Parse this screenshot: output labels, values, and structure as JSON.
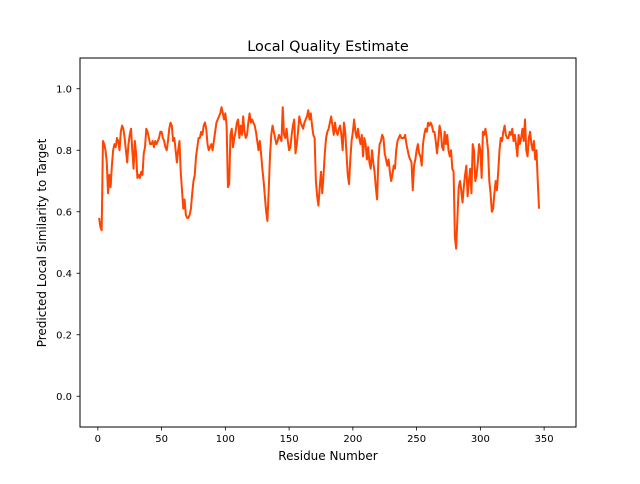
{
  "chart_data": {
    "type": "line",
    "title": "Local Quality Estimate",
    "xlabel": "Residue Number",
    "ylabel": "Predicted Local Similarity to Target",
    "xlim": [
      -14,
      375
    ],
    "ylim": [
      -0.1,
      1.1
    ],
    "xticks": [
      0,
      50,
      100,
      150,
      200,
      250,
      300,
      350
    ],
    "yticks": [
      0.0,
      0.2,
      0.4,
      0.6,
      0.8,
      1.0
    ],
    "ytick_labels": [
      "0.0",
      "0.2",
      "0.4",
      "0.6",
      "0.8",
      "1.0"
    ],
    "grid": false,
    "legend": "none",
    "line_color": "#ff4500",
    "series": [
      {
        "x_start": 1,
        "x_step": 1,
        "values": [
          0.58,
          0.55,
          0.54,
          0.83,
          0.82,
          0.8,
          0.76,
          0.66,
          0.72,
          0.68,
          0.75,
          0.8,
          0.82,
          0.81,
          0.84,
          0.83,
          0.8,
          0.86,
          0.88,
          0.87,
          0.84,
          0.8,
          0.76,
          0.82,
          0.85,
          0.87,
          0.8,
          0.74,
          0.83,
          0.79,
          0.71,
          0.72,
          0.71,
          0.73,
          0.72,
          0.79,
          0.81,
          0.87,
          0.86,
          0.84,
          0.82,
          0.82,
          0.83,
          0.81,
          0.83,
          0.82,
          0.83,
          0.84,
          0.86,
          0.86,
          0.84,
          0.83,
          0.81,
          0.8,
          0.83,
          0.87,
          0.89,
          0.88,
          0.83,
          0.84,
          0.8,
          0.76,
          0.8,
          0.83,
          0.73,
          0.67,
          0.61,
          0.64,
          0.59,
          0.58,
          0.58,
          0.59,
          0.61,
          0.66,
          0.7,
          0.72,
          0.78,
          0.81,
          0.84,
          0.84,
          0.86,
          0.85,
          0.88,
          0.89,
          0.87,
          0.82,
          0.8,
          0.81,
          0.82,
          0.8,
          0.83,
          0.86,
          0.89,
          0.9,
          0.91,
          0.92,
          0.94,
          0.92,
          0.9,
          0.92,
          0.88,
          0.68,
          0.69,
          0.85,
          0.87,
          0.81,
          0.84,
          0.86,
          0.89,
          0.9,
          0.84,
          0.88,
          0.85,
          0.91,
          0.86,
          0.84,
          0.85,
          0.89,
          0.92,
          0.89,
          0.9,
          0.89,
          0.88,
          0.86,
          0.83,
          0.8,
          0.83,
          0.79,
          0.74,
          0.7,
          0.65,
          0.6,
          0.57,
          0.67,
          0.78,
          0.85,
          0.88,
          0.86,
          0.84,
          0.82,
          0.83,
          0.85,
          0.84,
          0.83,
          0.94,
          0.85,
          0.84,
          0.87,
          0.83,
          0.8,
          0.81,
          0.85,
          0.88,
          0.9,
          0.79,
          0.82,
          0.86,
          0.91,
          0.89,
          0.88,
          0.87,
          0.89,
          0.9,
          0.91,
          0.93,
          0.9,
          0.92,
          0.88,
          0.85,
          0.84,
          0.7,
          0.65,
          0.62,
          0.68,
          0.73,
          0.66,
          0.72,
          0.79,
          0.84,
          0.86,
          0.87,
          0.89,
          0.91,
          0.88,
          0.85,
          0.89,
          0.86,
          0.85,
          0.87,
          0.88,
          0.85,
          0.8,
          0.89,
          0.86,
          0.79,
          0.72,
          0.69,
          0.77,
          0.83,
          0.86,
          0.9,
          0.86,
          0.84,
          0.87,
          0.84,
          0.82,
          0.85,
          0.78,
          0.84,
          0.82,
          0.77,
          0.81,
          0.76,
          0.74,
          0.8,
          0.76,
          0.73,
          0.68,
          0.64,
          0.77,
          0.82,
          0.83,
          0.85,
          0.84,
          0.79,
          0.77,
          0.75,
          0.77,
          0.73,
          0.7,
          0.72,
          0.75,
          0.74,
          0.8,
          0.83,
          0.84,
          0.85,
          0.84,
          0.84,
          0.84,
          0.85,
          0.82,
          0.8,
          0.78,
          0.77,
          0.76,
          0.67,
          0.75,
          0.77,
          0.8,
          0.82,
          0.79,
          0.78,
          0.75,
          0.82,
          0.85,
          0.87,
          0.86,
          0.89,
          0.88,
          0.89,
          0.88,
          0.86,
          0.86,
          0.83,
          0.79,
          0.83,
          0.88,
          0.86,
          0.81,
          0.8,
          0.86,
          0.82,
          0.85,
          0.8,
          0.78,
          0.8,
          0.74,
          0.73,
          0.52,
          0.48,
          0.58,
          0.68,
          0.7,
          0.67,
          0.63,
          0.68,
          0.72,
          0.75,
          0.65,
          0.7,
          0.74,
          0.66,
          0.82,
          0.8,
          0.7,
          0.72,
          0.76,
          0.82,
          0.8,
          0.71,
          0.86,
          0.85,
          0.87,
          0.84,
          0.8,
          0.7,
          0.66,
          0.6,
          0.61,
          0.66,
          0.7,
          0.67,
          0.73,
          0.8,
          0.84,
          0.83,
          0.86,
          0.88,
          0.85,
          0.84,
          0.84,
          0.86,
          0.85,
          0.87,
          0.83,
          0.85,
          0.82,
          0.78,
          0.85,
          0.82,
          0.84,
          0.87,
          0.83,
          0.9,
          0.8,
          0.78,
          0.84,
          0.86,
          0.82,
          0.8,
          0.83,
          0.77,
          0.8,
          0.7,
          0.61
        ]
      }
    ]
  }
}
